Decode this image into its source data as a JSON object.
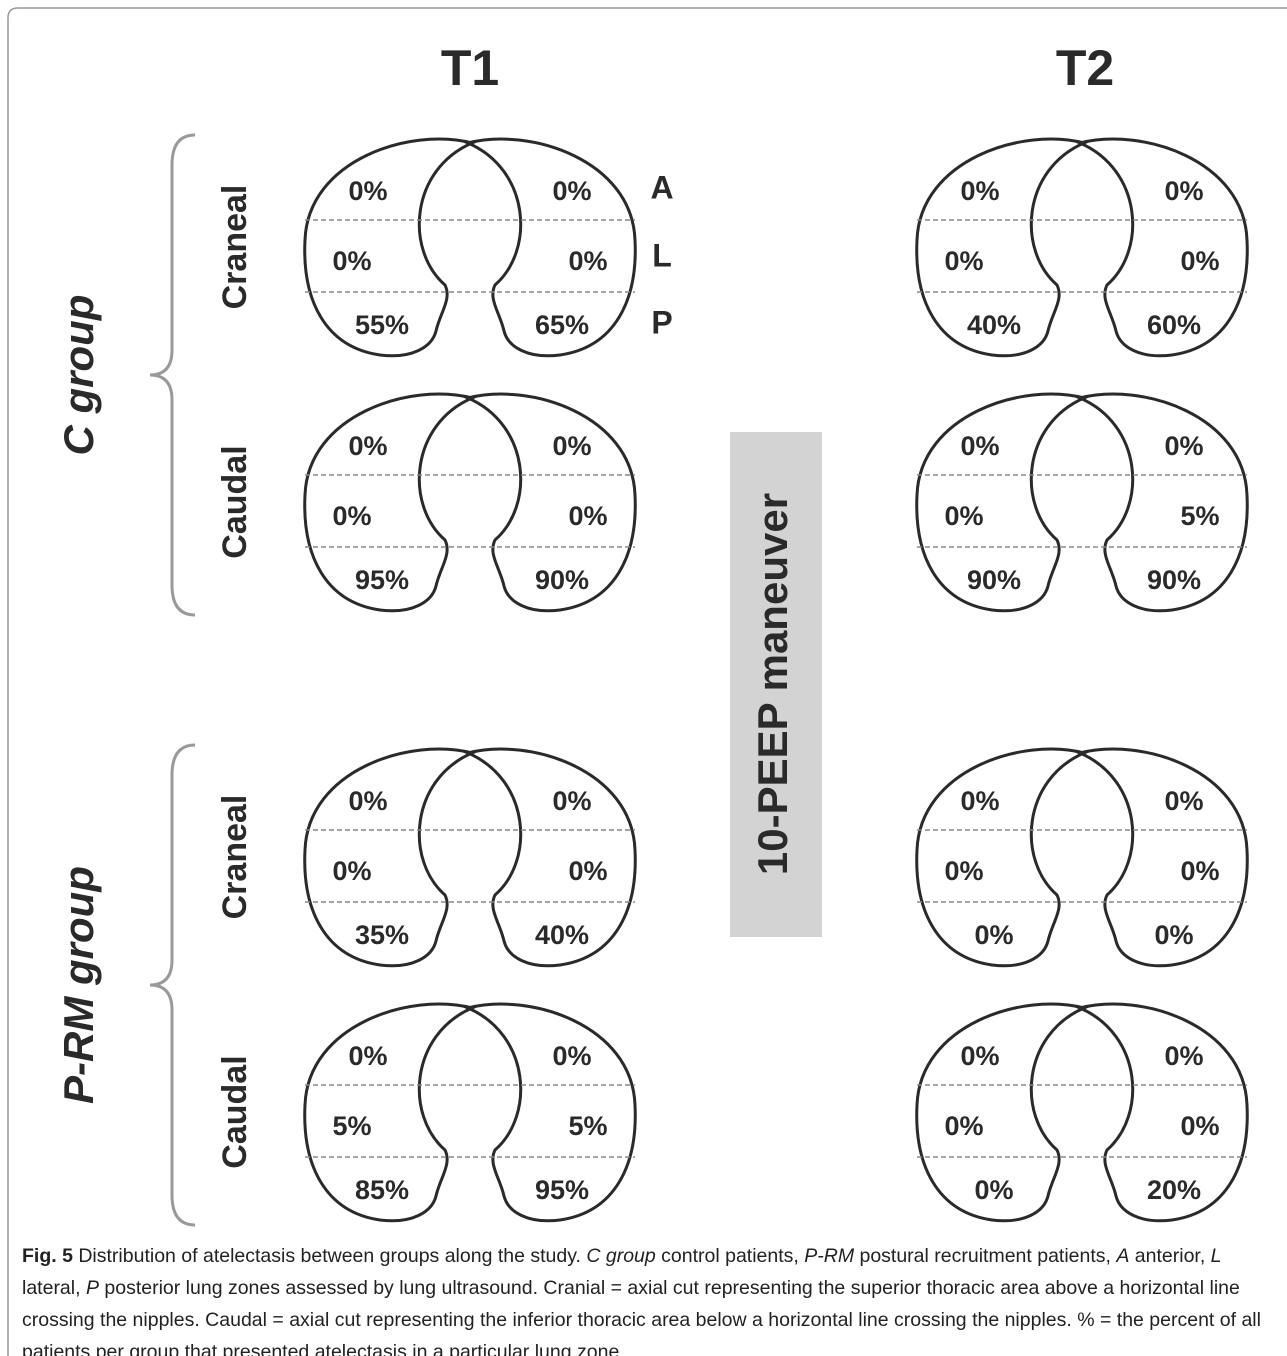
{
  "columns": [
    "T1",
    "T2"
  ],
  "maneuver": "10-PEEP maneuver",
  "zones": [
    "A",
    "L",
    "P"
  ],
  "groups": [
    {
      "name": "C group",
      "sections": [
        {
          "name": "Craneal",
          "values": [
            [
              "0%",
              "0%",
              "0%",
              "0%",
              "55%",
              "65%"
            ],
            [
              "0%",
              "0%",
              "0%",
              "0%",
              "40%",
              "60%"
            ]
          ]
        },
        {
          "name": "Caudal",
          "values": [
            [
              "0%",
              "0%",
              "0%",
              "0%",
              "95%",
              "90%"
            ],
            [
              "0%",
              "0%",
              "0%",
              "5%",
              "90%",
              "90%"
            ]
          ]
        }
      ]
    },
    {
      "name": "P-RM group",
      "sections": [
        {
          "name": "Craneal",
          "values": [
            [
              "0%",
              "0%",
              "0%",
              "0%",
              "35%",
              "40%"
            ],
            [
              "0%",
              "0%",
              "0%",
              "0%",
              "0%",
              "0%"
            ]
          ]
        },
        {
          "name": "Caudal",
          "values": [
            [
              "0%",
              "0%",
              "5%",
              "5%",
              "85%",
              "95%"
            ],
            [
              "0%",
              "0%",
              "0%",
              "0%",
              "0%",
              "20%"
            ]
          ]
        }
      ]
    }
  ],
  "caption": {
    "label": "Fig. 5",
    "runs": [
      {
        "text": " Distribution of atelectasis between groups along the study. ",
        "italic": false
      },
      {
        "text": "C group",
        "italic": true
      },
      {
        "text": " control patients, ",
        "italic": false
      },
      {
        "text": "P-RM",
        "italic": true
      },
      {
        "text": " postural recruitment patients, ",
        "italic": false
      },
      {
        "text": "A",
        "italic": true
      },
      {
        "text": " anterior, ",
        "italic": false
      },
      {
        "text": "L",
        "italic": true
      },
      {
        "text": " lateral, ",
        "italic": false
      },
      {
        "text": "P",
        "italic": true
      },
      {
        "text": " posterior lung zones assessed by lung ultrasound. Cranial = axial cut representing the superior thoracic area above a horizontal line crossing the nipples. Caudal = axial cut representing the inferior thoracic area below a horizontal line crossing the nipples. % = the percent of all patients per group that presented atelectasis in a particular lung zone",
        "italic": false
      }
    ]
  }
}
